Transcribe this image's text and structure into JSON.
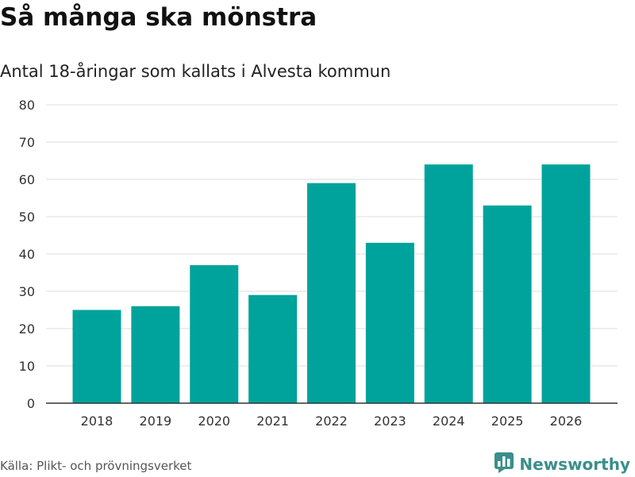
{
  "header": {
    "title": "Så många ska mönstra",
    "subtitle": "Antal 18-åringar som kallats i Alvesta kommun"
  },
  "footer": {
    "source": "Källa: Plikt- och prövningsverket",
    "brand": "Newsworthy",
    "brand_color": "#3a8f8a"
  },
  "chart_data": {
    "type": "bar",
    "title": "Så många ska mönstra",
    "subtitle": "Antal 18-åringar som kallats i Alvesta kommun",
    "categories": [
      "2018",
      "2019",
      "2020",
      "2021",
      "2022",
      "2023",
      "2024",
      "2025",
      "2026"
    ],
    "values": [
      25,
      26,
      37,
      29,
      59,
      43,
      64,
      53,
      64
    ],
    "xlabel": "",
    "ylabel": "",
    "ylim": [
      0,
      80
    ],
    "yticks": [
      "0",
      "10",
      "20",
      "30",
      "40",
      "50",
      "60",
      "70",
      "80"
    ],
    "grid": true,
    "bar_color": "#00a39b",
    "grid_color": "#dddddd",
    "axis_color": "#333333"
  }
}
